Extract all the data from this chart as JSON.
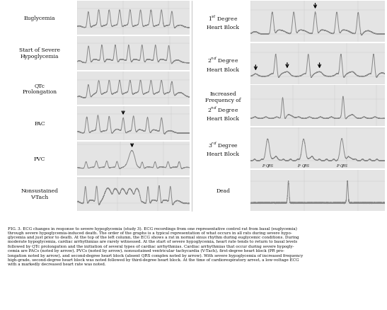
{
  "left_labels": [
    "Euglycemia",
    "Start of Severe\nHypoglycemia",
    "QTc\nProlongation",
    "PAC",
    "PVC",
    "Nonsustained\nV-Tach"
  ],
  "right_labels": [
    "1$^{st}$ Degree\nHeart Block",
    "2$^{nd}$ Degree\nHeart Block",
    "Increased\nFrequency of\n2$^{nd}$ Degree\nHeart Block",
    "3$^{rd}$ Degree\nHeart Block",
    "Dead"
  ],
  "bg_color": "#e8e8e8",
  "ecg_color": "#888888",
  "panel_bg": "#e4e4e4",
  "grid_color": "#bbbbbb",
  "fig_bg": "#ffffff",
  "text_color": "#111111",
  "caption": "FIG. 3. ECG changes in response to severe hypoglycemia (study 3). ECG recordings from one representative control rat from basal (euglycemia)\nthrough severe hypoglycemia-induced death. The order of the graphs is a typical representation of what occurs in all rats during severe hypo-\nglycemia and just prior to death. At the top of the left column, the ECG shows a rat in normal sinus rhythm during euglycemic conditions. During\nmoderate hypoglycemia, cardiac arrhythmias are rarely witnessed. At the start of severe hypoglycemia, heart rate tends to return to basal levels\nfollowed by QTc prolongation and the initiation of several types of cardiac arrhythmias. Cardiac arrhythmias that occur during severe hypogly-\ncemia are PACs (noted by arrow), PVCs (noted by arrow), nonsustained ventricular tachycardia (V-Tach), first-degree heart block (PR pro-\nlongation noted by arrow), and second-degree heart block (absent QRS complex noted by arrow). With severe hypoglycemia of increased frequency\nhigh-grade, second-degree heart block was noted followed by third-degree heart block. At the time of cardiorespiratory arrest, a low-voltage ECG\nwith a markedly decreased heart rate was noted."
}
